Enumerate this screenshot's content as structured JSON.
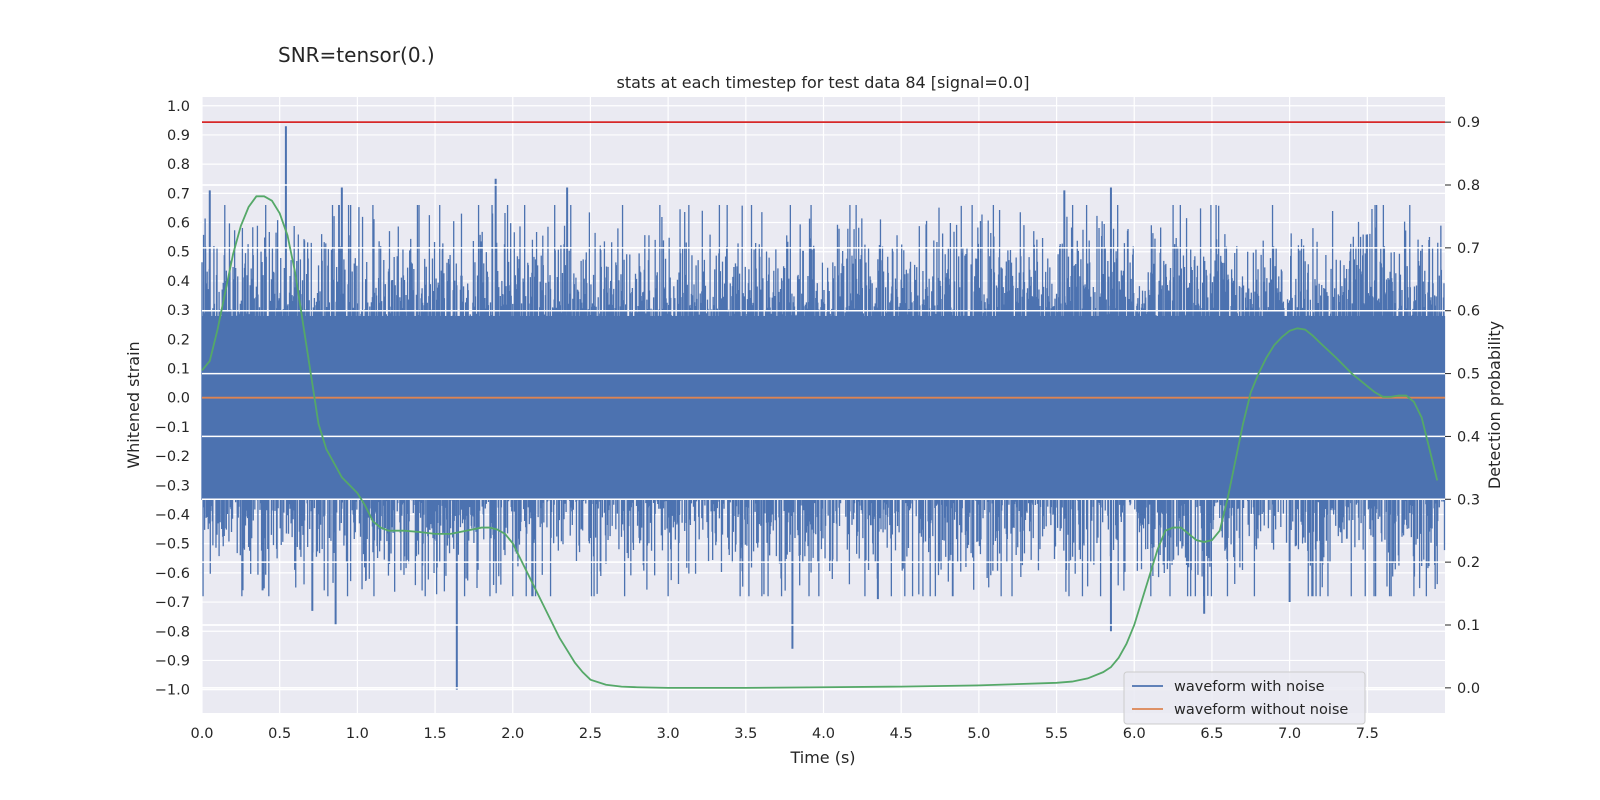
{
  "chart_data": {
    "type": "line",
    "suptitle": "SNR=tensor(0.)",
    "title": "stats at each timestep for test data 84 [signal=0.0]",
    "xlabel": "Time (s)",
    "ylabel": "Whitened strain",
    "ylabel_right": "Detection probability",
    "xlim": [
      0.0,
      8.0
    ],
    "ylim": [
      -1.08,
      1.03
    ],
    "ylim_right": [
      -0.04,
      0.94
    ],
    "x_ticks": [
      "0.0",
      "0.5",
      "1.0",
      "1.5",
      "2.0",
      "2.5",
      "3.0",
      "3.5",
      "4.0",
      "4.5",
      "5.0",
      "5.5",
      "6.0",
      "6.5",
      "7.0",
      "7.5"
    ],
    "y_ticks": [
      "1.0",
      "0.9",
      "0.8",
      "0.7",
      "0.6",
      "0.5",
      "0.4",
      "0.3",
      "0.2",
      "0.1",
      "0.0",
      "−0.1",
      "−0.2",
      "−0.3",
      "−0.4",
      "−0.5",
      "−0.6",
      "−0.7",
      "−0.8",
      "−0.9",
      "−1.0"
    ],
    "y_ticks_right": [
      "0.9",
      "0.8",
      "0.7",
      "0.6",
      "0.5",
      "0.4",
      "0.3",
      "0.2",
      "0.1",
      "0.0"
    ],
    "grid": true,
    "legend_position": "lower-right",
    "threshold": {
      "value": 0.9,
      "axis": "right",
      "color": "#d62728"
    },
    "noise_envelope": {
      "core_band": [
        -0.35,
        0.28
      ],
      "peaks": [
        {
          "x": 0.54,
          "y": 0.93
        },
        {
          "x": 0.05,
          "y": 0.71
        },
        {
          "x": 0.9,
          "y": 0.72
        },
        {
          "x": 1.89,
          "y": 0.75
        },
        {
          "x": 2.35,
          "y": 0.72
        },
        {
          "x": 5.55,
          "y": 0.71
        },
        {
          "x": 5.85,
          "y": 0.72
        },
        {
          "x": 1.64,
          "y": -1.0
        },
        {
          "x": 3.8,
          "y": -0.86
        },
        {
          "x": 0.71,
          "y": -0.73
        },
        {
          "x": 0.86,
          "y": -0.78
        },
        {
          "x": 4.35,
          "y": -0.69
        },
        {
          "x": 6.45,
          "y": -0.74
        },
        {
          "x": 7.0,
          "y": -0.7
        },
        {
          "x": 0.39,
          "y": -0.66
        },
        {
          "x": 5.85,
          "y": -0.8
        }
      ]
    },
    "series": [
      {
        "name": "waveform with noise",
        "color": "#4c72b0",
        "axis": "left",
        "render": "noise"
      },
      {
        "name": "waveform without noise",
        "color": "#dd8452",
        "axis": "left",
        "x": [
          0.0,
          8.0
        ],
        "y": [
          0.0,
          0.0
        ]
      },
      {
        "name": "",
        "color": "#55a868",
        "axis": "right",
        "x": [
          0.0,
          0.05,
          0.1,
          0.15,
          0.2,
          0.25,
          0.3,
          0.35,
          0.4,
          0.45,
          0.5,
          0.55,
          0.6,
          0.65,
          0.7,
          0.75,
          0.8,
          0.9,
          1.0,
          1.05,
          1.1,
          1.15,
          1.2,
          1.3,
          1.4,
          1.5,
          1.6,
          1.7,
          1.8,
          1.85,
          1.9,
          1.95,
          2.0,
          2.05,
          2.1,
          2.2,
          2.3,
          2.4,
          2.45,
          2.5,
          2.6,
          2.7,
          2.8,
          3.0,
          3.5,
          4.0,
          4.5,
          5.0,
          5.5,
          5.6,
          5.7,
          5.8,
          5.85,
          5.9,
          5.95,
          6.0,
          6.05,
          6.1,
          6.15,
          6.2,
          6.25,
          6.3,
          6.35,
          6.4,
          6.45,
          6.5,
          6.55,
          6.6,
          6.65,
          6.7,
          6.75,
          6.8,
          6.85,
          6.9,
          6.95,
          7.0,
          7.05,
          7.1,
          7.15,
          7.2,
          7.3,
          7.4,
          7.5,
          7.55,
          7.6,
          7.65,
          7.7,
          7.75,
          7.8,
          7.85,
          7.9,
          7.95
        ],
        "y": [
          0.505,
          0.52,
          0.57,
          0.63,
          0.69,
          0.735,
          0.765,
          0.782,
          0.782,
          0.775,
          0.755,
          0.72,
          0.66,
          0.58,
          0.5,
          0.42,
          0.38,
          0.335,
          0.31,
          0.29,
          0.265,
          0.255,
          0.25,
          0.25,
          0.248,
          0.245,
          0.245,
          0.25,
          0.255,
          0.255,
          0.252,
          0.245,
          0.23,
          0.205,
          0.18,
          0.13,
          0.08,
          0.04,
          0.025,
          0.013,
          0.005,
          0.002,
          0.001,
          0.0,
          0.0,
          0.001,
          0.002,
          0.004,
          0.008,
          0.01,
          0.015,
          0.025,
          0.033,
          0.048,
          0.07,
          0.1,
          0.14,
          0.18,
          0.22,
          0.25,
          0.255,
          0.255,
          0.245,
          0.235,
          0.232,
          0.235,
          0.25,
          0.3,
          0.36,
          0.42,
          0.47,
          0.5,
          0.525,
          0.545,
          0.558,
          0.568,
          0.572,
          0.57,
          0.56,
          0.548,
          0.525,
          0.5,
          0.48,
          0.47,
          0.463,
          0.463,
          0.465,
          0.465,
          0.455,
          0.43,
          0.38,
          0.33
        ]
      }
    ]
  }
}
